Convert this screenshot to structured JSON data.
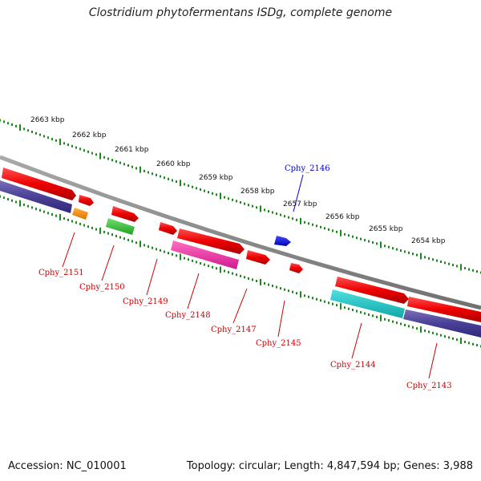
{
  "title": "Clostridium phytofermentans ISDg, complete genome",
  "footer": {
    "accession": "Accession: NC_010001",
    "summary": "Topology: circular; Length: 4,847,594 bp; Genes: 3,988"
  },
  "colors": {
    "backbone": "#808080",
    "ruler": "#1a8a1a",
    "label_red": "#cc0000",
    "label_blue": "#0000cc"
  },
  "ruler_labels": [
    "2663 kbp",
    "2662 kbp",
    "2661 kbp",
    "2660 kbp",
    "2659 kbp",
    "2658 kbp",
    "2657 kbp",
    "2656 kbp",
    "2655 kbp",
    "2654 kbp"
  ],
  "genes": [
    {
      "name": "Cphy_2151",
      "color": "red"
    },
    {
      "name": "Cphy_2150",
      "color": "red"
    },
    {
      "name": "Cphy_2149",
      "color": "red"
    },
    {
      "name": "Cphy_2148",
      "color": "red"
    },
    {
      "name": "Cphy_2147",
      "color": "red"
    },
    {
      "name": "Cphy_2146",
      "color": "blue"
    },
    {
      "name": "Cphy_2145",
      "color": "red"
    },
    {
      "name": "Cphy_2144",
      "color": "red"
    },
    {
      "name": "Cphy_2143",
      "color": "red"
    }
  ]
}
